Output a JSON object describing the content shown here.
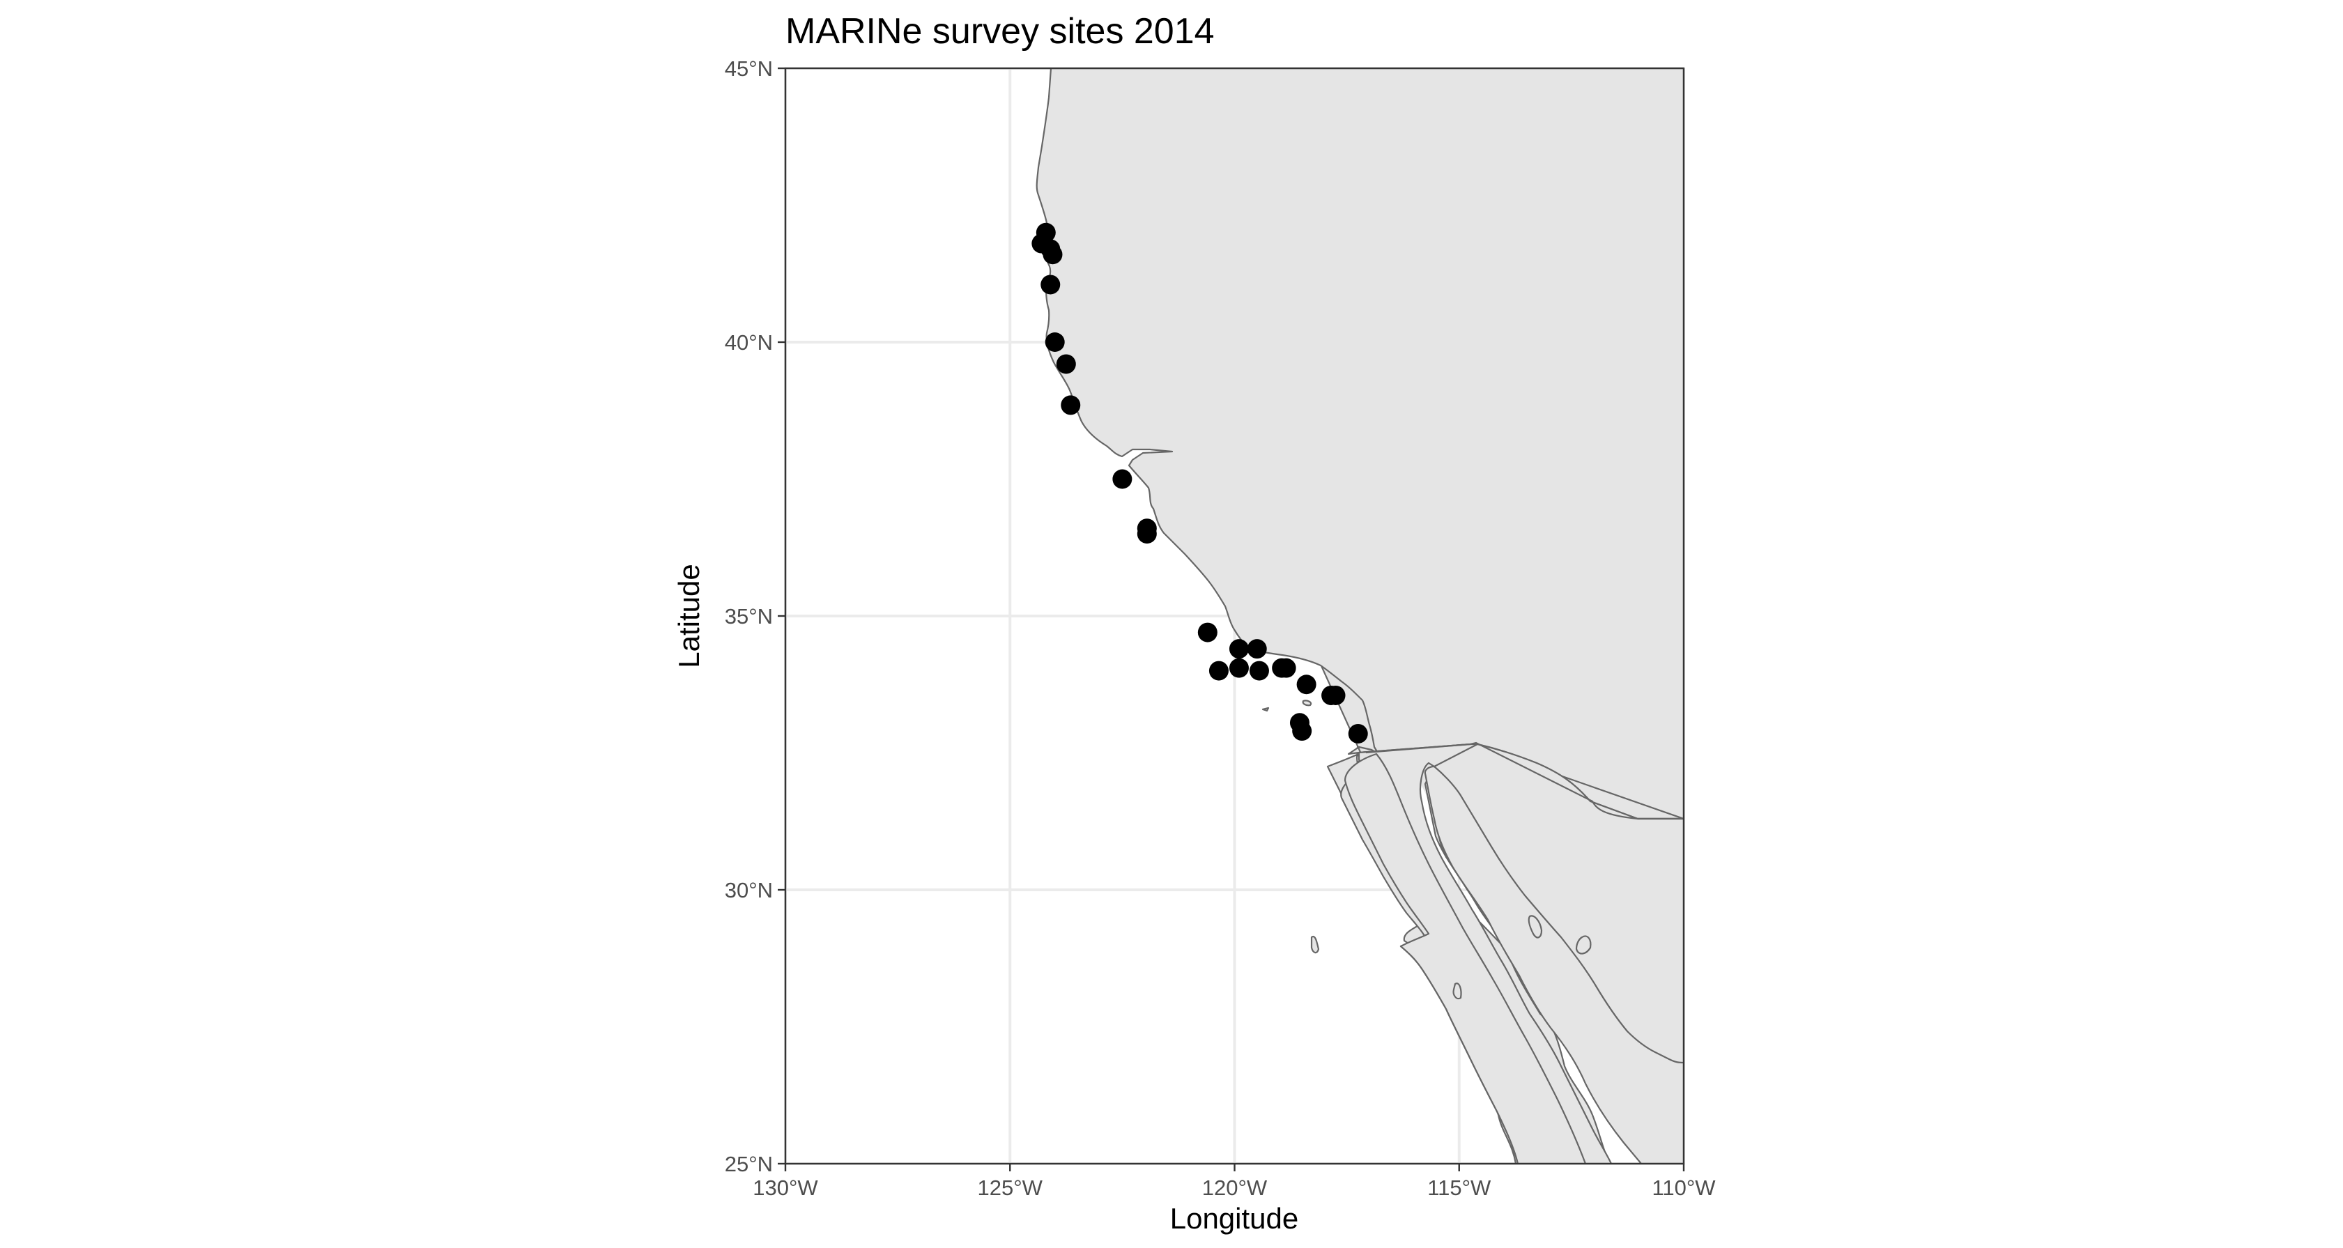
{
  "chart_data": {
    "type": "scatter",
    "title": "MARINe survey sites 2014",
    "xlabel": "Longitude",
    "ylabel": "Latitude",
    "xlim": [
      -130,
      -110
    ],
    "ylim": [
      25,
      45
    ],
    "x_ticks": [
      {
        "value": -130,
        "label": "130°W"
      },
      {
        "value": -125,
        "label": "125°W"
      },
      {
        "value": -120,
        "label": "120°W"
      },
      {
        "value": -115,
        "label": "115°W"
      },
      {
        "value": -110,
        "label": "110°W"
      }
    ],
    "y_ticks": [
      {
        "value": 25,
        "label": "25°N"
      },
      {
        "value": 30,
        "label": "30°N"
      },
      {
        "value": 35,
        "label": "35°N"
      },
      {
        "value": 40,
        "label": "40°N"
      },
      {
        "value": 45,
        "label": "45°N"
      }
    ],
    "grid": true,
    "legend": "none",
    "colors": {
      "land": "#e5e5e5",
      "coast": "#666666",
      "points": "#000000",
      "grid": "#ebebeb"
    },
    "points": [
      {
        "lon": -124.2,
        "lat": 42.0
      },
      {
        "lon": -124.3,
        "lat": 41.8
      },
      {
        "lon": -124.1,
        "lat": 41.7
      },
      {
        "lon": -124.05,
        "lat": 41.6
      },
      {
        "lon": -124.1,
        "lat": 41.05
      },
      {
        "lon": -124.0,
        "lat": 40.0
      },
      {
        "lon": -123.75,
        "lat": 39.6
      },
      {
        "lon": -123.65,
        "lat": 38.85
      },
      {
        "lon": -122.5,
        "lat": 37.5
      },
      {
        "lon": -121.95,
        "lat": 36.6
      },
      {
        "lon": -121.95,
        "lat": 36.5
      },
      {
        "lon": -120.6,
        "lat": 34.7
      },
      {
        "lon": -120.35,
        "lat": 34.0
      },
      {
        "lon": -119.9,
        "lat": 34.4
      },
      {
        "lon": -119.9,
        "lat": 34.05
      },
      {
        "lon": -119.5,
        "lat": 34.4
      },
      {
        "lon": -119.45,
        "lat": 34.0
      },
      {
        "lon": -118.95,
        "lat": 34.05
      },
      {
        "lon": -118.85,
        "lat": 34.05
      },
      {
        "lon": -118.4,
        "lat": 33.75
      },
      {
        "lon": -117.85,
        "lat": 33.55
      },
      {
        "lon": -117.75,
        "lat": 33.55
      },
      {
        "lon": -118.55,
        "lat": 33.05
      },
      {
        "lon": -118.5,
        "lat": 32.9
      },
      {
        "lon": -117.25,
        "lat": 32.85
      }
    ]
  }
}
